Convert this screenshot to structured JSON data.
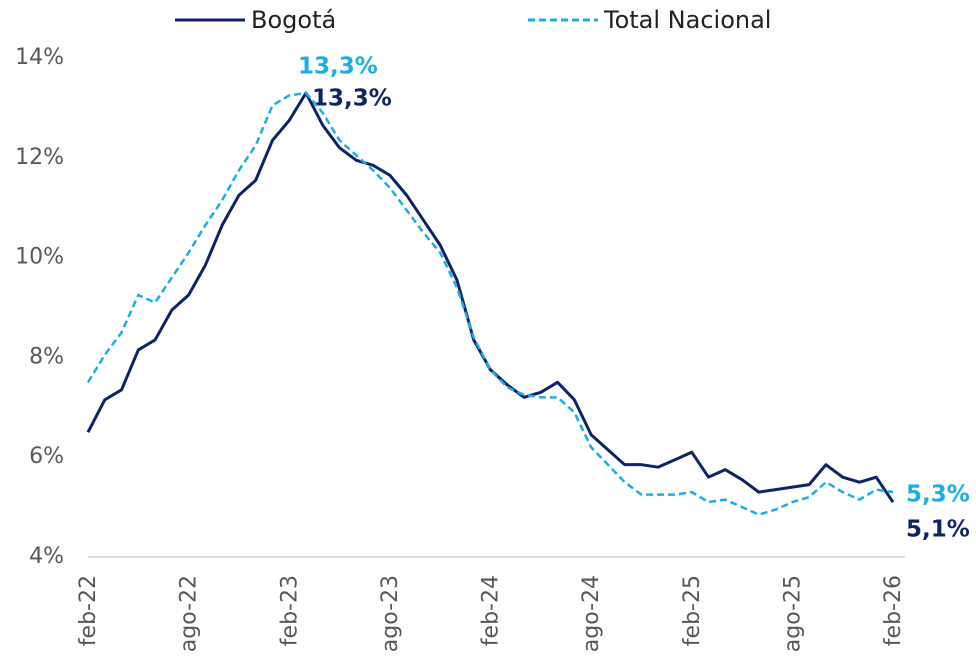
{
  "chart_data": {
    "type": "line",
    "categories": [
      "feb-22",
      null,
      null,
      null,
      null,
      null,
      "ago-22",
      null,
      null,
      null,
      null,
      null,
      "feb-23",
      null,
      null,
      null,
      null,
      null,
      "ago-23",
      null,
      null,
      null,
      null,
      null,
      "feb-24",
      null,
      null,
      null,
      null,
      null,
      "ago-24",
      null,
      null,
      null,
      null,
      null,
      "feb-25",
      null,
      null,
      null,
      null,
      null,
      "ago-25",
      null,
      null,
      null,
      null,
      null,
      "feb-26"
    ],
    "series": [
      {
        "name": "Bogotá",
        "color": "#0d2466",
        "dash": false,
        "values": [
          6.5,
          7.15,
          7.35,
          8.15,
          8.35,
          8.95,
          9.25,
          9.85,
          10.65,
          11.25,
          11.55,
          12.35,
          12.75,
          13.3,
          12.65,
          12.2,
          11.95,
          11.85,
          11.65,
          11.25,
          10.75,
          10.25,
          9.55,
          8.35,
          7.75,
          7.45,
          7.2,
          7.3,
          7.5,
          7.15,
          6.45,
          6.15,
          5.85,
          5.85,
          5.8,
          5.95,
          6.1,
          5.6,
          5.75,
          5.55,
          5.3,
          5.35,
          5.4,
          5.45,
          5.85,
          5.6,
          5.5,
          5.6,
          5.1
        ],
        "value_labels": [
          null,
          null,
          null,
          null,
          null,
          null,
          null,
          null,
          null,
          null,
          null,
          null,
          null,
          "13,3%",
          null,
          null,
          null,
          null,
          null,
          null,
          null,
          null,
          null,
          null,
          null,
          null,
          null,
          null,
          null,
          null,
          null,
          null,
          null,
          null,
          null,
          null,
          null,
          null,
          null,
          null,
          null,
          null,
          null,
          null,
          null,
          null,
          null,
          null,
          "5,1%"
        ]
      },
      {
        "name": "Total Nacional",
        "color": "#1aaee6",
        "dash": true,
        "values": [
          7.5,
          8.05,
          8.5,
          9.25,
          9.1,
          9.6,
          10.1,
          10.65,
          11.15,
          11.75,
          12.25,
          13.05,
          13.25,
          13.3,
          12.9,
          12.35,
          12.05,
          11.75,
          11.4,
          10.95,
          10.5,
          10.1,
          9.4,
          8.4,
          7.75,
          7.4,
          7.25,
          7.2,
          7.2,
          6.9,
          6.2,
          5.85,
          5.5,
          5.25,
          5.25,
          5.25,
          5.3,
          5.1,
          5.15,
          5.0,
          4.85,
          4.95,
          5.1,
          5.2,
          5.5,
          5.3,
          5.15,
          5.35,
          5.3
        ],
        "value_labels": [
          null,
          null,
          null,
          null,
          null,
          null,
          null,
          null,
          null,
          null,
          null,
          null,
          null,
          "13,3%",
          null,
          null,
          null,
          null,
          null,
          null,
          null,
          null,
          null,
          null,
          null,
          null,
          null,
          null,
          null,
          null,
          null,
          null,
          null,
          null,
          null,
          null,
          null,
          null,
          null,
          null,
          null,
          null,
          null,
          null,
          null,
          null,
          null,
          null,
          "5,3%"
        ]
      }
    ],
    "ylim": [
      4,
      14
    ],
    "yticks": [
      {
        "value": 4,
        "label": "4%"
      },
      {
        "value": 6,
        "label": "6%"
      },
      {
        "value": 8,
        "label": "8%"
      },
      {
        "value": 10,
        "label": "10%"
      },
      {
        "value": 12,
        "label": "12%"
      },
      {
        "value": 14,
        "label": "14%"
      }
    ],
    "grid": false,
    "legend": "top"
  }
}
